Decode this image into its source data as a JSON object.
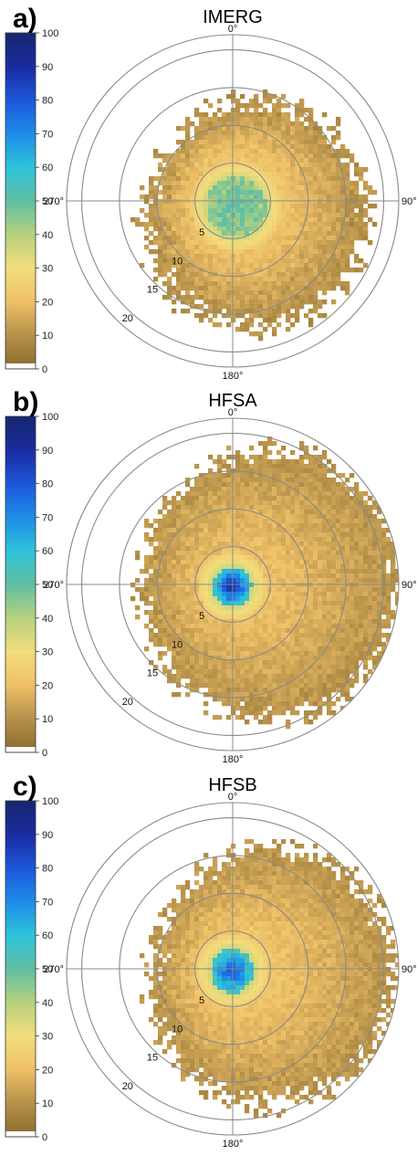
{
  "panels": [
    {
      "letter": "a)",
      "title": "IMERG",
      "chart_data": {
        "type": "heatmap",
        "projection": "polar",
        "title": "IMERG",
        "angle_tick_labels": [
          "0°",
          "90°",
          "180°",
          "270°"
        ],
        "radial_tick_labels": [
          "5",
          "10",
          "15",
          "20"
        ],
        "radial_ticks": [
          5,
          10,
          15,
          20
        ],
        "rlim": [
          0,
          22
        ],
        "grid": true,
        "colorbar": {
          "ticks": [
            0,
            10,
            20,
            30,
            40,
            50,
            60,
            70,
            80,
            90,
            100
          ],
          "range": [
            0,
            100
          ]
        },
        "field": {
          "core_value": 50,
          "core_radius": 4,
          "core_offset_deg": 150,
          "core_offset_r": 0.9,
          "mid_value": 25,
          "edge_value": 9,
          "coverage_radius": 14.5,
          "coverage_asymmetry_deg": 120,
          "coverage_asymmetry": 0.25
        }
      }
    },
    {
      "letter": "b)",
      "title": "HFSA",
      "chart_data": {
        "type": "heatmap",
        "projection": "polar",
        "title": "HFSA",
        "angle_tick_labels": [
          "0°",
          "90°",
          "180°",
          "270°"
        ],
        "radial_tick_labels": [
          "5",
          "10",
          "15",
          "20"
        ],
        "radial_ticks": [
          5,
          10,
          15,
          20
        ],
        "rlim": [
          0,
          22
        ],
        "grid": true,
        "colorbar": {
          "ticks": [
            0,
            10,
            20,
            30,
            40,
            50,
            60,
            70,
            80,
            90,
            100
          ],
          "range": [
            0,
            100
          ]
        },
        "field": {
          "core_value": 92,
          "core_radius": 2.6,
          "core_offset_deg": 200,
          "core_offset_r": 0.3,
          "mid_value": 22,
          "edge_value": 10,
          "coverage_radius": 17,
          "coverage_asymmetry_deg": 90,
          "coverage_asymmetry": 0.3
        }
      }
    },
    {
      "letter": "c)",
      "title": "HFSB",
      "chart_data": {
        "type": "heatmap",
        "projection": "polar",
        "title": "HFSB",
        "angle_tick_labels": [
          "0°",
          "90°",
          "180°",
          "270°"
        ],
        "radial_tick_labels": [
          "5",
          "10",
          "15",
          "20"
        ],
        "radial_ticks": [
          5,
          10,
          15,
          20
        ],
        "rlim": [
          0,
          22
        ],
        "grid": true,
        "colorbar": {
          "ticks": [
            0,
            10,
            20,
            30,
            40,
            50,
            60,
            70,
            80,
            90,
            100
          ],
          "range": [
            0,
            100
          ]
        },
        "field": {
          "core_value": 82,
          "core_radius": 2.9,
          "core_offset_deg": 190,
          "core_offset_r": 0.3,
          "mid_value": 24,
          "edge_value": 10,
          "coverage_radius": 16,
          "coverage_asymmetry_deg": 100,
          "coverage_asymmetry": 0.35
        }
      }
    }
  ],
  "colormap": [
    "#8a6a2c",
    "#b5914a",
    "#eec067",
    "#f3dd7c",
    "#b6d17d",
    "#5fbfa3",
    "#2ec2d9",
    "#1e8ce8",
    "#1d56d9",
    "#1a2aa0",
    "#16286e"
  ]
}
